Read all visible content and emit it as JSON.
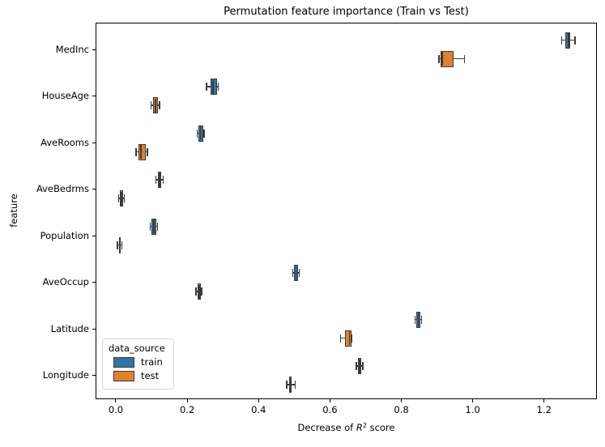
{
  "chart_data": {
    "type": "boxplot",
    "orientation": "horizontal",
    "title": "Permutation feature importance (Train vs Test)",
    "xlabel": "Decrease of R² score",
    "xlabel_parts": {
      "pre": "Decrease of ",
      "var": "R",
      "sup": "2",
      "post": " score"
    },
    "ylabel": "feature",
    "xlim": [
      -0.0567,
      1.3479
    ],
    "grid": false,
    "legend": {
      "title": "data_source",
      "position": "lower left"
    },
    "xticks": {
      "values": [
        0.0,
        0.2,
        0.4,
        0.6,
        0.8,
        1.0,
        1.2
      ],
      "labels": [
        "0.0",
        "0.2",
        "0.4",
        "0.6",
        "0.8",
        "1.0",
        "1.2"
      ]
    },
    "features": [
      "MedInc",
      "HouseAge",
      "AveRooms",
      "AveBedrms",
      "Population",
      "AveOccup",
      "Latitude",
      "Longitude"
    ],
    "series": [
      {
        "name": "train",
        "color": "#3274a1",
        "boxes": [
          {
            "feature": "MedInc",
            "whislo": 1.249,
            "q1": 1.26,
            "med": 1.268,
            "q3": 1.274,
            "whishi": 1.287
          },
          {
            "feature": "HouseAge",
            "whislo": 0.254,
            "q1": 0.265,
            "med": 0.272,
            "q3": 0.283,
            "whishi": 0.287
          },
          {
            "feature": "AveRooms",
            "whislo": 0.228,
            "q1": 0.231,
            "med": 0.237,
            "q3": 0.245,
            "whishi": 0.247
          },
          {
            "feature": "AveBedrms",
            "whislo": 0.112,
            "q1": 0.118,
            "med": 0.123,
            "q3": 0.128,
            "whishi": 0.133
          },
          {
            "feature": "Population",
            "whislo": 0.096,
            "q1": 0.1,
            "med": 0.107,
            "q3": 0.113,
            "whishi": 0.117
          },
          {
            "feature": "AveOccup",
            "whislo": 0.496,
            "q1": 0.5,
            "med": 0.505,
            "q3": 0.511,
            "whishi": 0.514
          },
          {
            "feature": "Latitude",
            "whislo": 0.839,
            "q1": 0.843,
            "med": 0.848,
            "q3": 0.853,
            "whishi": 0.857
          },
          {
            "feature": "Longitude",
            "whislo": 0.674,
            "q1": 0.679,
            "med": 0.683,
            "q3": 0.688,
            "whishi": 0.692
          }
        ]
      },
      {
        "name": "test",
        "color": "#e1812c",
        "boxes": [
          {
            "feature": "MedInc",
            "whislo": 0.905,
            "q1": 0.911,
            "med": 0.915,
            "q3": 0.947,
            "whishi": 0.977
          },
          {
            "feature": "HouseAge",
            "whislo": 0.099,
            "q1": 0.105,
            "med": 0.111,
            "q3": 0.117,
            "whishi": 0.122
          },
          {
            "feature": "AveRooms",
            "whislo": 0.057,
            "q1": 0.064,
            "med": 0.07,
            "q3": 0.085,
            "whishi": 0.088
          },
          {
            "feature": "AveBedrms",
            "whislo": 0.008,
            "q1": 0.012,
            "med": 0.016,
            "q3": 0.02,
            "whishi": 0.024
          },
          {
            "feature": "Population",
            "whislo": 0.005,
            "q1": 0.009,
            "med": 0.011,
            "q3": 0.014,
            "whishi": 0.017
          },
          {
            "feature": "AveOccup",
            "whislo": 0.225,
            "q1": 0.23,
            "med": 0.234,
            "q3": 0.238,
            "whishi": 0.241
          },
          {
            "feature": "Latitude",
            "whislo": 0.63,
            "q1": 0.642,
            "med": 0.655,
            "q3": 0.66,
            "whishi": 0.662
          },
          {
            "feature": "Longitude",
            "whislo": 0.479,
            "q1": 0.486,
            "med": 0.49,
            "q3": 0.493,
            "whishi": 0.503
          }
        ]
      }
    ],
    "colors": {
      "box_edge": "#3a3a3a",
      "spine": "#000000",
      "background": "#ffffff"
    }
  }
}
